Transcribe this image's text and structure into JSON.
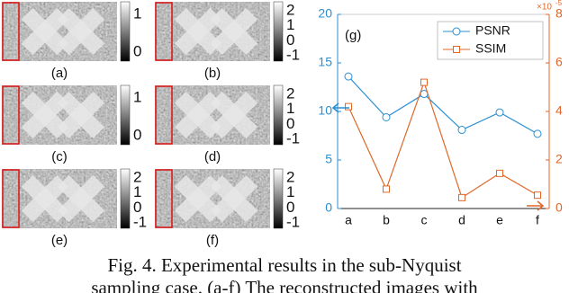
{
  "panels": [
    {
      "label": "(a)",
      "colorbar_ticks": [
        "1",
        "0"
      ]
    },
    {
      "label": "(b)",
      "colorbar_ticks": [
        "2",
        "1",
        "0",
        "-1"
      ]
    },
    {
      "label": "(c)",
      "colorbar_ticks": [
        "1",
        "0"
      ]
    },
    {
      "label": "(d)",
      "colorbar_ticks": [
        "2",
        "1",
        "0",
        "-1"
      ]
    },
    {
      "label": "(e)",
      "colorbar_ticks": [
        "2",
        "1",
        "0",
        "-1"
      ]
    },
    {
      "label": "(f)",
      "colorbar_ticks": [
        "2",
        "1",
        "0",
        "-1"
      ]
    }
  ],
  "chart_data": {
    "type": "line",
    "label": "(g)",
    "categories": [
      "a",
      "b",
      "c",
      "d",
      "e",
      "f"
    ],
    "series": [
      {
        "name": "PSNR",
        "color": "#2b8fd1",
        "marker": "circle",
        "values": [
          13.6,
          9.4,
          11.8,
          8.1,
          9.9,
          7.7
        ]
      },
      {
        "name": "SSIM",
        "color": "#e0672a",
        "marker": "square",
        "axis": "y2",
        "values": [
          4.2,
          0.8,
          5.2,
          0.45,
          1.45,
          0.55
        ]
      }
    ],
    "ylim": [
      0,
      20
    ],
    "yticks": [
      0,
      5,
      10,
      15,
      20
    ],
    "y2lim": [
      0,
      8
    ],
    "y2ticks": [
      0,
      2,
      4,
      6,
      8
    ],
    "y2_multiplier": "×10",
    "y2_exponent": "-5",
    "legend": "upper right"
  },
  "caption": {
    "lines": [
      "Fig. 4. Experimental results in the sub-Nyquist",
      "sampling case. (a-f) The reconstructed images with"
    ]
  }
}
